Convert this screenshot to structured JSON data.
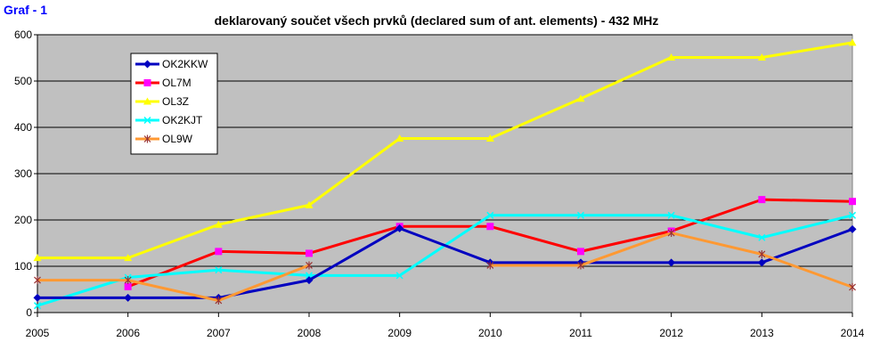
{
  "graf_label": "Graf - 1",
  "chart_data": {
    "type": "line",
    "title": "deklarovaný součet všech prvků (declared sum of ant. elements) - 432 MHz",
    "xlabel": "",
    "ylabel": "",
    "categories": [
      "2005",
      "2006",
      "2007",
      "2008",
      "2009",
      "2010",
      "2011",
      "2012",
      "2013",
      "2014"
    ],
    "ylim": [
      0,
      600
    ],
    "yticks": [
      0,
      100,
      200,
      300,
      400,
      500,
      600
    ],
    "grid": true,
    "legend_position": "top-left",
    "plot_background": "#c0c0c0",
    "series": [
      {
        "name": "OL3Z",
        "color": "#ffff00",
        "marker": "triangle",
        "values": [
          118,
          118,
          190,
          232,
          376,
          376,
          462,
          551,
          551,
          583
        ]
      },
      {
        "name": "OL7M",
        "color": "#ff0000",
        "marker": "square",
        "values": [
          null,
          56,
          132,
          128,
          186,
          186,
          132,
          176,
          244,
          240
        ]
      },
      {
        "name": "OK2KJT",
        "color": "#00ffff",
        "marker": "cross",
        "values": [
          15,
          76,
          92,
          80,
          80,
          210,
          210,
          210,
          162,
          210
        ]
      },
      {
        "name": "OK2KKW",
        "color": "#0000c0",
        "marker": "diamond",
        "values": [
          32,
          32,
          32,
          70,
          182,
          108,
          108,
          108,
          108,
          180
        ]
      },
      {
        "name": "OL9W",
        "color": "#ff9933",
        "marker": "star",
        "values": [
          70,
          70,
          26,
          102,
          null,
          102,
          102,
          172,
          126,
          55
        ]
      }
    ],
    "legend_order": [
      "OK2KKW",
      "OL7M",
      "OL3Z",
      "OK2KJT",
      "OL9W"
    ]
  }
}
